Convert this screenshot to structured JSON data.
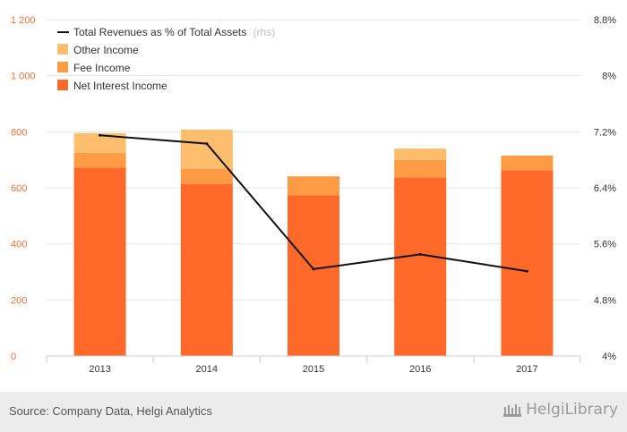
{
  "chart_data": {
    "type": "bar",
    "stacked": true,
    "categories": [
      "2013",
      "2014",
      "2015",
      "2016",
      "2017"
    ],
    "series": [
      {
        "name": "Net Interest Income",
        "values": [
          672,
          614,
          573,
          637,
          662
        ],
        "color": "#ff6a2b"
      },
      {
        "name": "Fee Income",
        "values": [
          53,
          54,
          68,
          63,
          53
        ],
        "color": "#ff9b45"
      },
      {
        "name": "Other Income",
        "values": [
          70,
          140,
          0,
          40,
          0
        ],
        "color": "#ffbd6e"
      }
    ],
    "line_series": {
      "name": "Total Revenues as % of Total Assets",
      "suffix": "(rhs)",
      "axis": "right",
      "values": [
        7.15,
        7.03,
        5.24,
        5.45,
        5.21
      ],
      "color": "#111111"
    },
    "y_left": {
      "min": 0,
      "max": 1200,
      "ticks": [
        0,
        200,
        400,
        600,
        800,
        1000,
        1200
      ],
      "tick_labels": [
        "0",
        "200",
        "400",
        "600",
        "800",
        "1 000",
        "1 200"
      ]
    },
    "y_right": {
      "min": 4.0,
      "max": 8.8,
      "ticks": [
        4.0,
        4.8,
        5.6,
        6.4,
        7.2,
        8.0,
        8.8
      ],
      "tick_labels": [
        "4%",
        "4.8%",
        "5.6%",
        "6.4%",
        "7.2%",
        "8%",
        "8.8%"
      ]
    },
    "legend_position": "top-left",
    "grid": true
  },
  "footer": {
    "source": "Source: Company Data, Helgi Analytics",
    "brand": "HelgiLibrary"
  },
  "colors": {
    "left_axis_labels": "#e8743b",
    "footer_bg": "#ececec"
  }
}
